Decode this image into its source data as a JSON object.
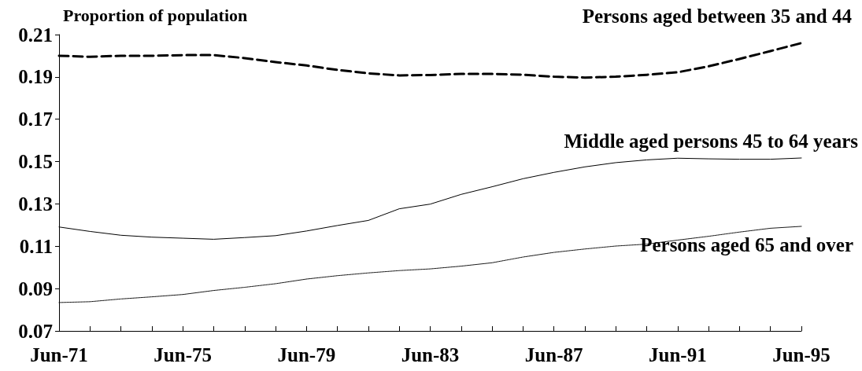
{
  "chart_data": {
    "type": "line",
    "ylabel": "Proportion of population",
    "categories": [
      "Jun-71",
      null,
      null,
      null,
      "Jun-75",
      null,
      null,
      null,
      "Jun-79",
      null,
      null,
      null,
      "Jun-83",
      null,
      null,
      null,
      "Jun-87",
      null,
      null,
      null,
      "Jun-91",
      null,
      null,
      null,
      "Jun-95"
    ],
    "series": [
      {
        "name": "Persons aged between 35 and 44",
        "color": "#000000",
        "line_style": "dashed",
        "values": [
          0.2,
          0.1995,
          0.2,
          0.2,
          0.2003,
          0.2003,
          0.1989,
          0.197,
          0.1954,
          0.1933,
          0.1917,
          0.1907,
          0.1909,
          0.1914,
          0.1914,
          0.191,
          0.1901,
          0.1897,
          0.1901,
          0.191,
          0.1922,
          0.195,
          0.1985,
          0.2022,
          0.206
        ]
      },
      {
        "name": "Middle aged persons 45 to 64 years",
        "color": "#000000",
        "line_style": "solid",
        "values": [
          0.1191,
          0.117,
          0.1152,
          0.1143,
          0.1138,
          0.1133,
          0.1141,
          0.115,
          0.1172,
          0.1198,
          0.1222,
          0.1277,
          0.1299,
          0.1345,
          0.1381,
          0.1419,
          0.1449,
          0.1475,
          0.1495,
          0.1508,
          0.1516,
          0.1513,
          0.1511,
          0.1511,
          0.1517
        ]
      },
      {
        "name": "Persons aged 65 and over",
        "color": "#000000",
        "line_style": "dotted",
        "values": [
          0.0834,
          0.0838,
          0.0851,
          0.0861,
          0.0872,
          0.0891,
          0.0906,
          0.0923,
          0.0945,
          0.0961,
          0.0974,
          0.0985,
          0.0993,
          0.1006,
          0.1022,
          0.1049,
          0.1071,
          0.1087,
          0.1101,
          0.111,
          0.1129,
          0.1147,
          0.1167,
          0.1185,
          0.1194
        ]
      }
    ],
    "ylim": [
      0.07,
      0.21
    ],
    "yticks": [
      0.07,
      0.09,
      0.11,
      0.13,
      0.15,
      0.17,
      0.19,
      0.21
    ],
    "grid": false,
    "legend": false,
    "marker": "none"
  }
}
